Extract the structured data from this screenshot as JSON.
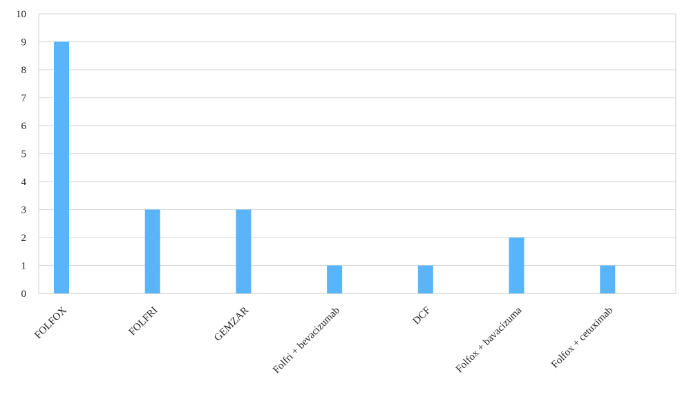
{
  "chart_data": {
    "type": "bar",
    "title": "",
    "xlabel": "",
    "ylabel": "",
    "categories": [
      "FOLFOX",
      "FOLFRI",
      "GEMZAR",
      "Folfri + bevacizumab",
      "DCF",
      "Folfox + bavacizuma",
      "Folfox + cetuximab"
    ],
    "values": [
      9,
      3,
      3,
      1,
      1,
      2,
      1
    ],
    "ylim": [
      0,
      10
    ],
    "yticks": [
      "0",
      "1",
      "2",
      "3",
      "4",
      "5",
      "6",
      "7",
      "8",
      "9",
      "10"
    ],
    "grid": true,
    "legend": "none",
    "colors": {
      "bar": "#5ab4f9",
      "grid": "#dcdcdc",
      "axis": "#cfcfcf"
    }
  }
}
